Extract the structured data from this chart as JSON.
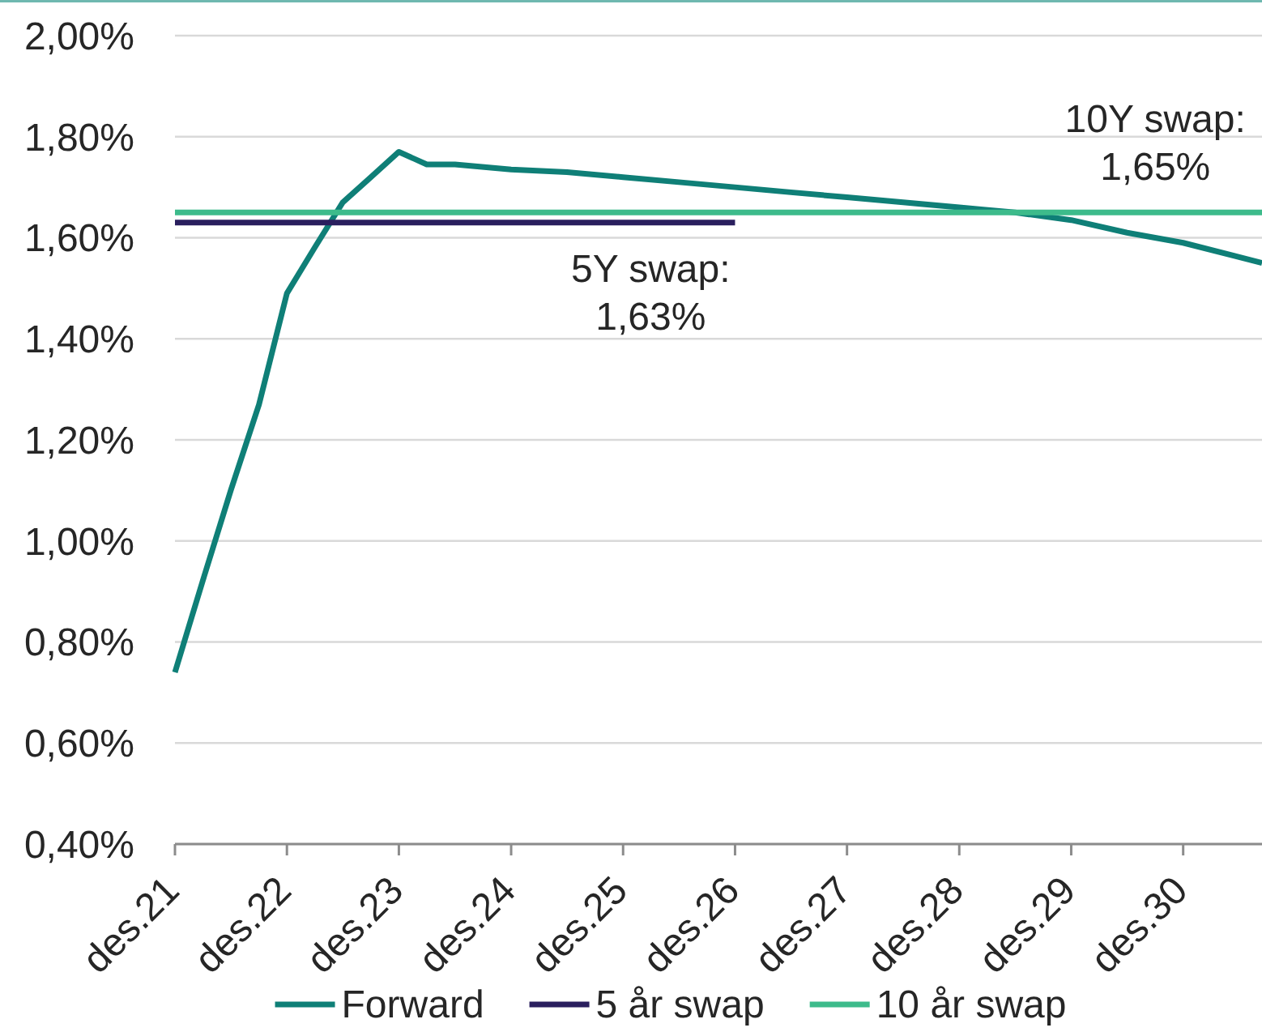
{
  "chart_data": {
    "type": "line",
    "xlim": [
      "2021-12-01",
      "2031-08-15"
    ],
    "xticks": [
      {
        "value": "2021-12",
        "label": "des.21"
      },
      {
        "value": "2022-12",
        "label": "des.22"
      },
      {
        "value": "2023-12",
        "label": "des.23"
      },
      {
        "value": "2024-12",
        "label": "des.24"
      },
      {
        "value": "2025-12",
        "label": "des.25"
      },
      {
        "value": "2026-12",
        "label": "des.26"
      },
      {
        "value": "2027-12",
        "label": "des.27"
      },
      {
        "value": "2028-12",
        "label": "des.28"
      },
      {
        "value": "2029-12",
        "label": "des.29"
      },
      {
        "value": "2030-12",
        "label": "des.30"
      }
    ],
    "ylim": [
      0.4,
      2.0
    ],
    "yticks": [
      {
        "value": 0.4,
        "label": "0,40%"
      },
      {
        "value": 0.6,
        "label": "0,60%"
      },
      {
        "value": 0.8,
        "label": "0,80%"
      },
      {
        "value": 1.0,
        "label": "1,00%"
      },
      {
        "value": 1.2,
        "label": "1,20%"
      },
      {
        "value": 1.4,
        "label": "1,40%"
      },
      {
        "value": 1.6,
        "label": "1,60%"
      },
      {
        "value": 1.8,
        "label": "1,80%"
      },
      {
        "value": 2.0,
        "label": "2,00%"
      }
    ],
    "grid": "y",
    "legend": "bottom",
    "series": [
      {
        "name": "Forward",
        "color": "#0f7f77",
        "x": [
          "2021-12",
          "2022-03",
          "2022-06",
          "2022-09",
          "2022-12",
          "2023-03",
          "2023-06",
          "2023-09",
          "2023-12",
          "2024-03",
          "2024-06",
          "2024-12",
          "2025-06",
          "2025-12",
          "2026-06",
          "2026-12",
          "2027-06",
          "2027-12",
          "2028-06",
          "2028-12",
          "2029-06",
          "2029-12",
          "2030-06",
          "2030-12",
          "2031-08-15"
        ],
        "values": [
          0.74,
          0.92,
          1.1,
          1.27,
          1.49,
          1.58,
          1.67,
          1.72,
          1.77,
          1.745,
          1.745,
          1.735,
          1.73,
          1.72,
          1.71,
          1.7,
          1.69,
          1.68,
          1.67,
          1.66,
          1.65,
          1.635,
          1.61,
          1.59,
          1.55
        ]
      },
      {
        "name": "5 år swap",
        "color": "#2a1f5e",
        "x": [
          "2021-12",
          "2026-12"
        ],
        "values": [
          1.63,
          1.63
        ]
      },
      {
        "name": "10 år swap",
        "color": "#3dbb8b",
        "x": [
          "2021-12",
          "2031-08-15"
        ],
        "values": [
          1.65,
          1.65
        ]
      }
    ],
    "annotations": [
      {
        "text": "5Y swap:\n1,63%",
        "x": "2026-03",
        "y": 1.63
      },
      {
        "text": "10Y swap:\n1,65%",
        "x": "2030-09",
        "y": 1.65
      }
    ]
  }
}
